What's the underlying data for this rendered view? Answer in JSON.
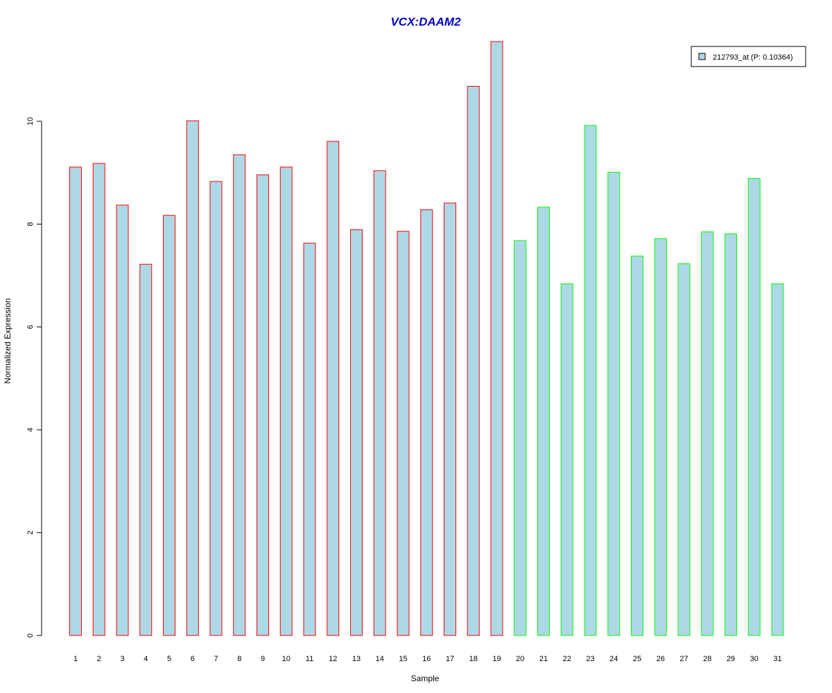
{
  "chart_data": {
    "type": "bar",
    "title": "VCX:DAAM2",
    "xlabel": "Sample",
    "ylabel": "Normalized Expression",
    "categories": [
      "1",
      "2",
      "3",
      "4",
      "5",
      "6",
      "7",
      "8",
      "9",
      "10",
      "11",
      "12",
      "13",
      "14",
      "15",
      "16",
      "17",
      "18",
      "19",
      "20",
      "21",
      "22",
      "23",
      "24",
      "25",
      "26",
      "27",
      "28",
      "29",
      "30",
      "31"
    ],
    "values": [
      9.11,
      9.18,
      8.37,
      7.22,
      8.17,
      10.01,
      8.83,
      9.35,
      8.96,
      9.11,
      7.63,
      9.61,
      7.89,
      9.04,
      7.86,
      8.28,
      8.41,
      10.68,
      11.55,
      7.68,
      8.33,
      6.84,
      9.92,
      9.01,
      7.38,
      7.72,
      7.23,
      7.85,
      7.81,
      8.89,
      6.84
    ],
    "group_border_colors": [
      "#ff0000",
      "#ff0000",
      "#ff0000",
      "#ff0000",
      "#ff0000",
      "#ff0000",
      "#ff0000",
      "#ff0000",
      "#ff0000",
      "#ff0000",
      "#ff0000",
      "#ff0000",
      "#ff0000",
      "#ff0000",
      "#ff0000",
      "#ff0000",
      "#ff0000",
      "#ff0000",
      "#ff0000",
      "#00ff00",
      "#00ff00",
      "#00ff00",
      "#00ff00",
      "#00ff00",
      "#00ff00",
      "#00ff00",
      "#00ff00",
      "#00ff00",
      "#00ff00",
      "#00ff00",
      "#00ff00"
    ],
    "bar_fill_color": "#add8e6",
    "title_color": "#0000cc",
    "ylim": [
      0,
      11.6
    ],
    "yticks": [
      0,
      2,
      4,
      6,
      8,
      10
    ],
    "grid": false,
    "legend": {
      "placement": "top-right",
      "entries": [
        {
          "label": "212793_at (P: 0.10364)",
          "color": "#add8e6"
        }
      ]
    }
  }
}
